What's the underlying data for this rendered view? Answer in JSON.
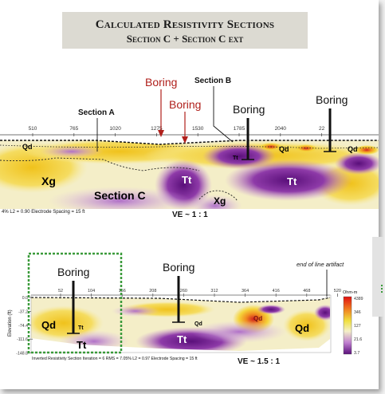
{
  "title": {
    "line1": "Calculated Resistivity Sections",
    "line2": "Section C + Section C ext"
  },
  "section1": {
    "x_ticks": [
      "510",
      "765",
      "1020",
      "1275",
      "1530",
      "1785",
      "2040",
      "22"
    ],
    "callouts": {
      "boring_red_1": "Boring",
      "boring_red_2": "Boring",
      "section_b": "Section B",
      "section_a": "Section A",
      "boring_black_1": "Boring",
      "boring_black_2": "Boring"
    },
    "unit_labels": {
      "qd1": "Qd",
      "qd2": "Qd",
      "qd3": "Qd",
      "xg1": "Xg",
      "xg2": "Xg",
      "tt1": "Tt",
      "tt2": "Tt",
      "tt3": "Tt",
      "section_c": "Section C"
    },
    "footer": "4%   L2 = 0.90     Electrode Spacing = 15 ft",
    "ve": "VE ~ 1 : 1",
    "colors": {
      "conductive": "#6a1e8a",
      "resistive": "#f0c020"
    }
  },
  "section2": {
    "x_ticks": [
      "52",
      "104",
      "156",
      "208",
      "260",
      "312",
      "364",
      "416",
      "468",
      "520"
    ],
    "y_ticks": [
      "0.0",
      "-37.2",
      "-74.4",
      "-111.6",
      "-148.8"
    ],
    "y_label": "Elevation (ft)",
    "callouts": {
      "boring_1": "Boring",
      "boring_2": "Boring",
      "end_of_line": "end of line artifact"
    },
    "unit_labels": {
      "qd1": "Qd",
      "qd2": "Qd",
      "qd3": "Qd",
      "qd4": "Qd",
      "tt1": "Tt",
      "tt2": "Tt",
      "tt3": "Tt"
    },
    "colorbar": {
      "unit": "Ohm-m",
      "labels": [
        "4389",
        "346",
        "127",
        "21.6",
        "3.7"
      ]
    },
    "footer": "Inverted Resistivity Section    Iteration = 6    RMS = 7.05%    L2 = 0.97    Electrode Spacing = 15 ft",
    "ve": "VE ~ 1.5 : 1"
  }
}
